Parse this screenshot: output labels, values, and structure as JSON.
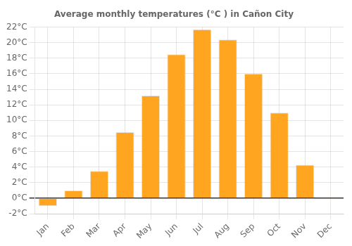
{
  "chart_data": {
    "type": "bar",
    "title": "Average monthly temperatures (°C ) in Cañon City",
    "categories": [
      "Jan",
      "Feb",
      "Mar",
      "Apr",
      "May",
      "Jun",
      "Jul",
      "Aug",
      "Sep",
      "Oct",
      "Nov",
      "Dec"
    ],
    "values": [
      -1.0,
      1.0,
      3.5,
      8.5,
      13.2,
      18.5,
      21.7,
      20.4,
      16.0,
      11.0,
      4.3,
      -0.1
    ],
    "color": "#FFA520",
    "ylim": [
      -2,
      22
    ],
    "yticks": [
      {
        "value": -2,
        "label": "-2°C"
      },
      {
        "value": 0,
        "label": "0°C"
      },
      {
        "value": 2,
        "label": "2°C"
      },
      {
        "value": 4,
        "label": "4°C"
      },
      {
        "value": 6,
        "label": "6°C"
      },
      {
        "value": 8,
        "label": "8°C"
      },
      {
        "value": 10,
        "label": "10°C"
      },
      {
        "value": 12,
        "label": "12°C"
      },
      {
        "value": 14,
        "label": "14°C"
      },
      {
        "value": 16,
        "label": "16°C"
      },
      {
        "value": 18,
        "label": "18°C"
      },
      {
        "value": 20,
        "label": "20°C"
      },
      {
        "value": 22,
        "label": "22°C"
      }
    ],
    "grid": true
  }
}
